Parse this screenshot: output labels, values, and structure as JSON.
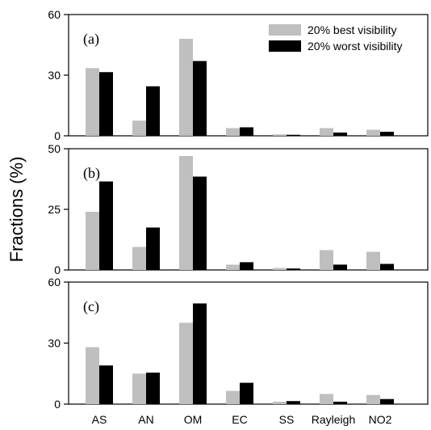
{
  "chart_data": {
    "type": "bar",
    "ylabel": "Fractions (%)",
    "categories": [
      "AS",
      "AN",
      "OM",
      "EC",
      "SS",
      "Rayleigh",
      "NO2"
    ],
    "legend": {
      "placement": "top-right",
      "entries": [
        {
          "name": "20% best visibility",
          "color": "#bfbfbf"
        },
        {
          "name": "20% worst visibility",
          "color": "#000000"
        }
      ]
    },
    "panels": [
      {
        "label": "(a)",
        "ylim": [
          0,
          60
        ],
        "yticks": [
          "0",
          "30",
          "60"
        ],
        "series": [
          {
            "name": "20% best visibility",
            "values": [
              33.5,
              7.5,
              48,
              3.8,
              0.7,
              3.8,
              3
            ]
          },
          {
            "name": "20% worst visibility",
            "values": [
              31.5,
              24.5,
              37,
              4.2,
              0.5,
              1.6,
              2
            ]
          }
        ]
      },
      {
        "label": "(b)",
        "ylim": [
          0,
          50
        ],
        "yticks": [
          "0",
          "25",
          "50"
        ],
        "series": [
          {
            "name": "20% best visibility",
            "values": [
              24,
              9.5,
              47,
              2.2,
              0.8,
              8.2,
              7.5
            ]
          },
          {
            "name": "20% worst visibility",
            "values": [
              36.5,
              17.5,
              38.5,
              3.2,
              0.6,
              2.2,
              2.5
            ]
          }
        ]
      },
      {
        "label": "(c)",
        "ylim": [
          0,
          60
        ],
        "yticks": [
          "0",
          "30",
          "60"
        ],
        "series": [
          {
            "name": "20% best visibility",
            "values": [
              28,
              15,
              40,
              6.5,
              1.2,
              5,
              4.5
            ]
          },
          {
            "name": "20% worst visibility",
            "values": [
              19,
              15.5,
              49.5,
              10.5,
              1.5,
              1.2,
              2.5
            ]
          }
        ]
      }
    ]
  }
}
